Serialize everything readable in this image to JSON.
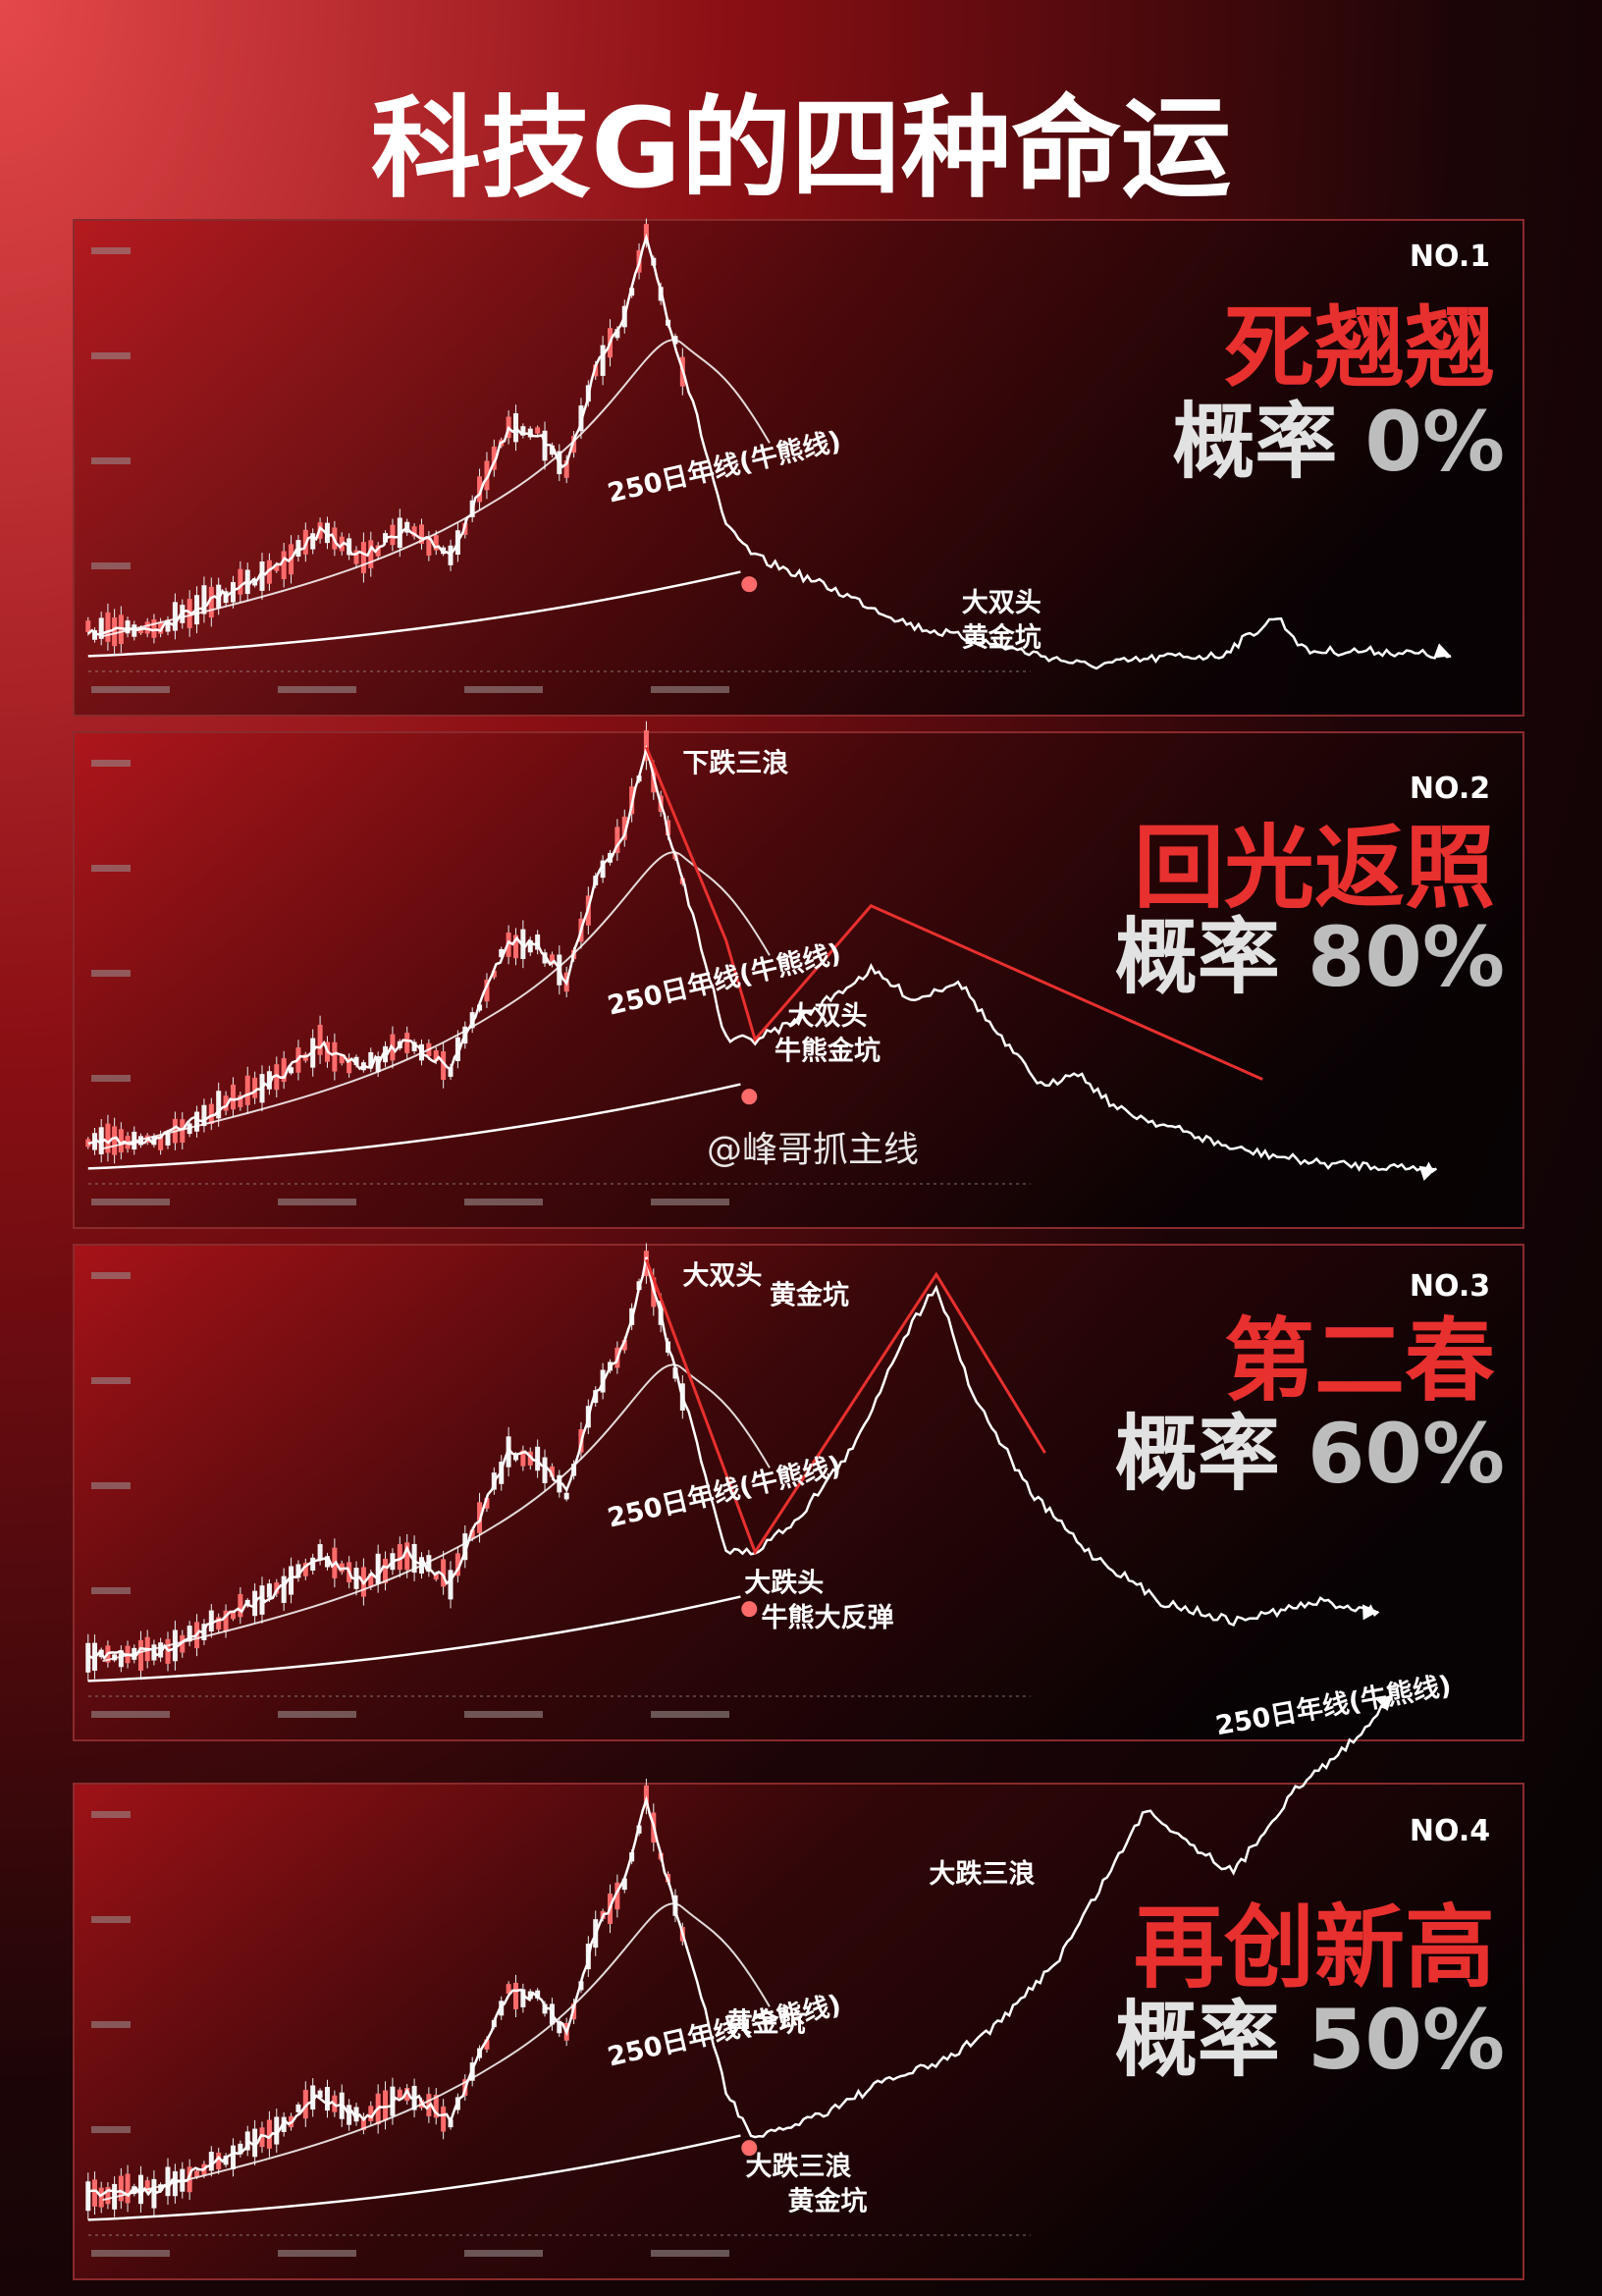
{
  "title": "科技G的四种命运",
  "watermark": "@峰哥抓主线",
  "panels": [
    {
      "number": "NO.1",
      "name": "死翘翘",
      "probability_label": "概率",
      "probability": "0%",
      "annotations": [
        "250日年线(牛熊线)",
        "大双头",
        "黄金坑"
      ]
    },
    {
      "number": "NO.2",
      "name": "回光返照",
      "probability_label": "概率",
      "probability": "80%",
      "annotations": [
        "250日年线(牛熊线)",
        "大双头",
        "牛熊金坑",
        "下跌三浪"
      ]
    },
    {
      "number": "NO.3",
      "name": "第二春",
      "probability_label": "概率",
      "probability": "60%",
      "annotations": [
        "250日年线(牛熊线)",
        "大跌头",
        "牛熊大反弹",
        "大双头",
        "黄金坑"
      ]
    },
    {
      "number": "NO.4",
      "name": "再创新高",
      "probability_label": "概率",
      "probability": "50%",
      "annotations": [
        "250日年线(牛熊线)",
        "大跌三浪",
        "黄金坑",
        "黄金坑",
        "大跌三浪",
        "250日年线(牛熊线)"
      ]
    }
  ]
}
